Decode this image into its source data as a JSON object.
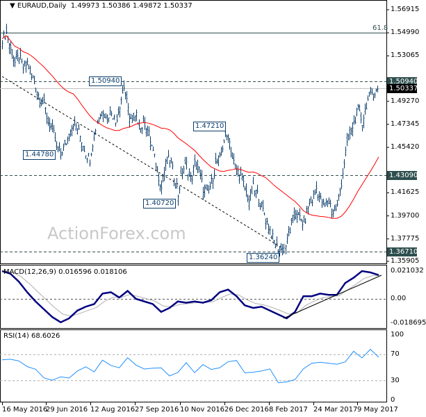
{
  "header": {
    "symbol": "EURAUD,Daily",
    "ohlc": "1.49973 1.50386 1.49872 1.50337"
  },
  "watermark": "ActionForex.com",
  "colors": {
    "bars": "#0b3d6b",
    "sma": "#ff0000",
    "macd": "#000080",
    "signal": "#b0b0b0",
    "rsi": "#1e90ff",
    "level_label_bg": "#2f4f4f",
    "current_label_bg": "#000000"
  },
  "chart_data": [
    {
      "type": "bar",
      "title": "EURAUD,Daily",
      "ylim": [
        1.35905,
        1.56915
      ],
      "y_ticks": [
        "1.56915",
        "1.54990",
        "1.53065",
        "1.50940",
        "1.49270",
        "1.47345",
        "1.45420",
        "1.43090",
        "1.41625",
        "1.39700",
        "1.37775",
        "1.36710",
        "1.35905"
      ],
      "x_ticks": [
        "16 May 2016",
        "29 Jun 2016",
        "12 Aug 2016",
        "27 Sep 2016",
        "10 Nov 2016",
        "26 Dec 2016",
        "8 Feb 2017",
        "24 Mar 2017",
        "9 May 2017"
      ],
      "closes": [
        1.545,
        1.55,
        1.535,
        1.525,
        1.53,
        1.52,
        1.525,
        1.515,
        1.505,
        1.495,
        1.49,
        1.475,
        1.47,
        1.455,
        1.45,
        1.455,
        1.465,
        1.475,
        1.47,
        1.46,
        1.45,
        1.445,
        1.465,
        1.48,
        1.485,
        1.48,
        1.485,
        1.475,
        1.49,
        1.505,
        1.485,
        1.475,
        1.48,
        1.47,
        1.475,
        1.465,
        1.45,
        1.435,
        1.42,
        1.44,
        1.445,
        1.43,
        1.415,
        1.435,
        1.44,
        1.425,
        1.44,
        1.435,
        1.42,
        1.415,
        1.425,
        1.44,
        1.445,
        1.46,
        1.465,
        1.445,
        1.435,
        1.43,
        1.42,
        1.41,
        1.42,
        1.415,
        1.405,
        1.395,
        1.385,
        1.375,
        1.37,
        1.368,
        1.375,
        1.39,
        1.4,
        1.395,
        1.39,
        1.405,
        1.41,
        1.42,
        1.41,
        1.405,
        1.41,
        1.4,
        1.405,
        1.425,
        1.45,
        1.465,
        1.475,
        1.485,
        1.475,
        1.49,
        1.5,
        1.5,
        1.503
      ],
      "levels": [
        {
          "value": 1.5094,
          "label": "1.50940",
          "style": "dashed"
        },
        {
          "value": 1.4309,
          "label": "1.43090",
          "style": "dashed"
        },
        {
          "value": 1.3671,
          "label": "1.36710",
          "style": "dashed"
        },
        {
          "value": 1.5499,
          "label": "61.8",
          "style": "solid"
        },
        {
          "value": 1.50337,
          "label": "1.50337",
          "style": "current"
        }
      ],
      "annotations": [
        "1.50940",
        "1.44780",
        "1.40720",
        "1.47210",
        "1.36240"
      ]
    },
    {
      "type": "line",
      "title": "MACD(12,26,9) 0.016596 0.018106",
      "y_ticks": [
        "0.021032",
        "0.00",
        "-0.018695"
      ],
      "ylim": [
        -0.018695,
        0.021032
      ],
      "macd": [
        0.021,
        0.019,
        0.013,
        0.005,
        -0.002,
        -0.008,
        -0.014,
        -0.018,
        -0.015,
        -0.009,
        -0.006,
        -0.004,
        0.004,
        0.005,
        0.001,
        0.006,
        0.0,
        -0.002,
        -0.004,
        -0.01,
        -0.007,
        -0.002,
        -0.003,
        -0.002,
        -0.003,
        -0.001,
        0.005,
        0.007,
        0.002,
        -0.005,
        -0.007,
        -0.006,
        -0.009,
        -0.012,
        -0.015,
        -0.01,
        0.002,
        0.002,
        0.004,
        0.003,
        0.003,
        0.012,
        0.016,
        0.021,
        0.02,
        0.018
      ]
    },
    {
      "type": "line",
      "title": "RSI(14) 68.6026",
      "y_ticks": [
        "100",
        "70",
        "30",
        "0"
      ],
      "ylim": [
        0,
        100
      ],
      "levels": [
        70,
        30
      ],
      "values": [
        62,
        63,
        60,
        52,
        47,
        35,
        30,
        37,
        33,
        46,
        50,
        45,
        60,
        55,
        48,
        67,
        52,
        50,
        47,
        52,
        35,
        45,
        55,
        45,
        52,
        50,
        47,
        62,
        58,
        45,
        40,
        48,
        45,
        30,
        25,
        35,
        45,
        60,
        55,
        60,
        52,
        62,
        72,
        68,
        75,
        69
      ]
    }
  ]
}
